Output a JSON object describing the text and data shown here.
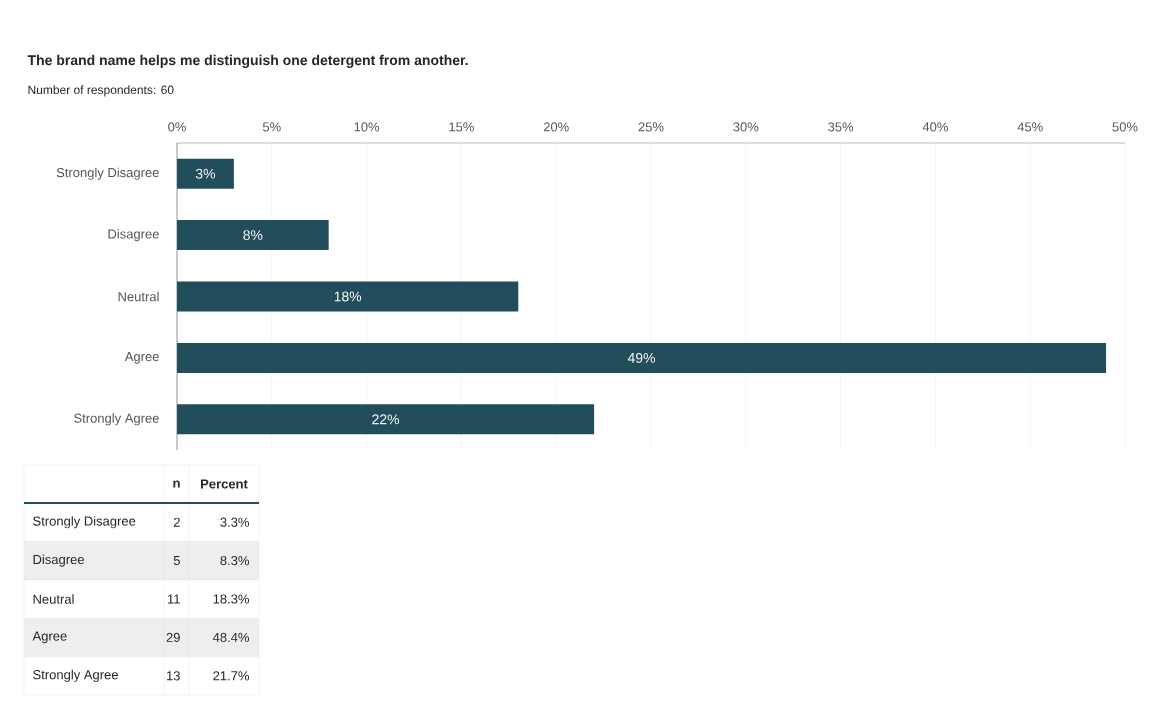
{
  "chart_data": {
    "type": "bar",
    "orientation": "horizontal",
    "title": "The brand name helps me distinguish one detergent from another.",
    "subtitle": "Number of respondents: 60",
    "categories": [
      "Strongly Disagree",
      "Disagree",
      "Neutral",
      "Agree",
      "Strongly Agree"
    ],
    "values": [
      3,
      8,
      18,
      49,
      22
    ],
    "value_labels": [
      "3%",
      "8%",
      "18%",
      "49%",
      "22%"
    ],
    "color": "#224e5c",
    "xlim": [
      0,
      50
    ],
    "xticks": [
      {
        "value": 0,
        "label": "0%"
      },
      {
        "value": 5,
        "label": "5%"
      },
      {
        "value": 10,
        "label": "10%"
      },
      {
        "value": 15,
        "label": "15%"
      },
      {
        "value": 20,
        "label": "20%"
      },
      {
        "value": 25,
        "label": "25%"
      },
      {
        "value": 30,
        "label": "30%"
      },
      {
        "value": 35,
        "label": "35%"
      },
      {
        "value": 40,
        "label": "40%"
      },
      {
        "value": 45,
        "label": "45%"
      },
      {
        "value": 50,
        "label": "50%"
      }
    ],
    "grid": "x",
    "annotations": [
      "n",
      "Percent",
      "2",
      "3.3%",
      "5",
      "8.3%",
      "11",
      "18.3%",
      "29",
      "48.4%",
      "13",
      "21.7%"
    ]
  }
}
